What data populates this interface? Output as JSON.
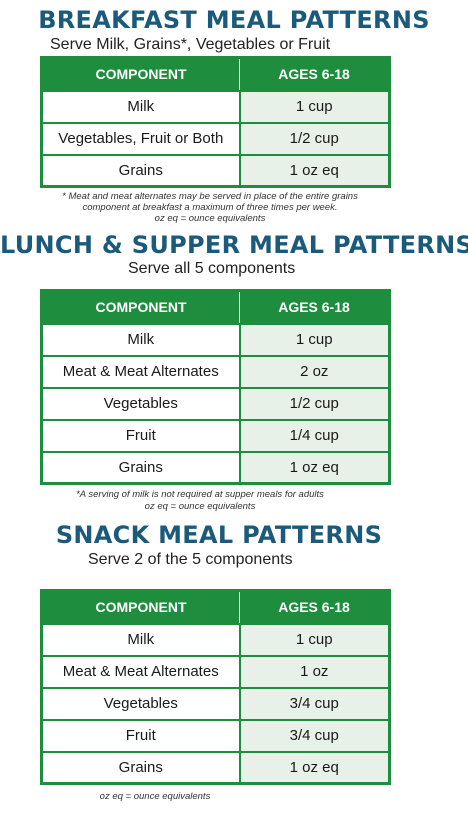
{
  "breakfast": {
    "title": "BREAKFAST MEAL PATTERNS",
    "subtitle": "Serve Milk, Grains*, Vegetables or Fruit",
    "headers": {
      "component": "COMPONENT",
      "ages": "AGES 6-18"
    },
    "rows": [
      {
        "component": "Milk",
        "amount": "1 cup"
      },
      {
        "component": "Vegetables, Fruit or Both",
        "amount": "1/2 cup"
      },
      {
        "component": "Grains",
        "amount": "1 oz eq"
      }
    ],
    "note_line1": "* Meat and meat alternates may be served in place of the entire grains",
    "note_line2": "component at breakfast a maximum of three times per week.",
    "note_line3": "oz eq = ounce equivalents"
  },
  "lunch": {
    "title": "LUNCH & SUPPER MEAL PATTERNS",
    "subtitle": "Serve all 5 components",
    "headers": {
      "component": "COMPONENT",
      "ages": "AGES 6-18"
    },
    "rows": [
      {
        "component": "Milk",
        "amount": "1 cup"
      },
      {
        "component": "Meat & Meat Alternates",
        "amount": "2 oz"
      },
      {
        "component": "Vegetables",
        "amount": "1/2 cup"
      },
      {
        "component": "Fruit",
        "amount": "1/4 cup"
      },
      {
        "component": "Grains",
        "amount": "1 oz eq"
      }
    ],
    "note_line1": "*A serving of milk is not required at supper meals for adults",
    "note_line2": "oz eq = ounce equivalents"
  },
  "snack": {
    "title": "SNACK MEAL PATTERNS",
    "subtitle": "Serve 2 of the 5 components",
    "headers": {
      "component": "COMPONENT",
      "ages": "AGES 6-18"
    },
    "rows": [
      {
        "component": "Milk",
        "amount": "1 cup"
      },
      {
        "component": "Meat & Meat Alternates",
        "amount": "1 oz"
      },
      {
        "component": "Vegetables",
        "amount": "3/4 cup"
      },
      {
        "component": "Fruit",
        "amount": "3/4 cup"
      },
      {
        "component": "Grains",
        "amount": "1 oz eq"
      }
    ],
    "note_line1": "oz eq = ounce equivalents"
  },
  "colors": {
    "green": "#1e8e3e",
    "title_blue": "#1b5a7a",
    "age_cell": "#e8f1e8"
  }
}
